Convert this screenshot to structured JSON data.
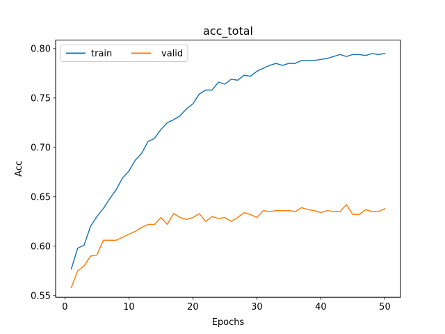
{
  "chart_data": {
    "type": "line",
    "title": "acc_total",
    "xlabel": "Epochs",
    "ylabel": "Acc",
    "xlim": [
      -1.45,
      52.45
    ],
    "ylim": [
      0.5483,
      0.8086
    ],
    "xticks": [
      0,
      10,
      20,
      30,
      40,
      50
    ],
    "yticks": [
      0.55,
      0.6,
      0.65,
      0.7,
      0.75,
      0.8
    ],
    "ytick_labels": [
      "0.55",
      "0.60",
      "0.65",
      "0.70",
      "0.75",
      "0.80"
    ],
    "grid": false,
    "legend_position": "upper-left",
    "x": [
      1,
      2,
      3,
      4,
      5,
      6,
      7,
      8,
      9,
      10,
      11,
      12,
      13,
      14,
      15,
      16,
      17,
      18,
      19,
      20,
      21,
      22,
      23,
      24,
      25,
      26,
      27,
      28,
      29,
      30,
      31,
      32,
      33,
      34,
      35,
      36,
      37,
      38,
      39,
      40,
      41,
      42,
      43,
      44,
      45,
      46,
      47,
      48,
      49,
      50
    ],
    "series": [
      {
        "name": "train",
        "color": "#1f77b4",
        "values": [
          0.577,
          0.598,
          0.601,
          0.62,
          0.63,
          0.638,
          0.648,
          0.657,
          0.669,
          0.676,
          0.687,
          0.694,
          0.706,
          0.709,
          0.718,
          0.725,
          0.728,
          0.732,
          0.739,
          0.744,
          0.754,
          0.758,
          0.758,
          0.766,
          0.764,
          0.769,
          0.768,
          0.773,
          0.772,
          0.777,
          0.78,
          0.783,
          0.785,
          0.783,
          0.785,
          0.785,
          0.788,
          0.788,
          0.788,
          0.789,
          0.79,
          0.792,
          0.794,
          0.792,
          0.794,
          0.794,
          0.793,
          0.795,
          0.794,
          0.795
        ]
      },
      {
        "name": "valid",
        "color": "#ff7f0e",
        "values": [
          0.558,
          0.575,
          0.58,
          0.59,
          0.591,
          0.606,
          0.606,
          0.606,
          0.609,
          0.612,
          0.615,
          0.619,
          0.622,
          0.622,
          0.629,
          0.622,
          0.633,
          0.629,
          0.627,
          0.629,
          0.633,
          0.625,
          0.63,
          0.628,
          0.629,
          0.625,
          0.629,
          0.634,
          0.632,
          0.629,
          0.636,
          0.635,
          0.636,
          0.636,
          0.636,
          0.635,
          0.639,
          0.637,
          0.636,
          0.634,
          0.636,
          0.635,
          0.635,
          0.642,
          0.632,
          0.632,
          0.637,
          0.635,
          0.635,
          0.638
        ]
      }
    ]
  }
}
